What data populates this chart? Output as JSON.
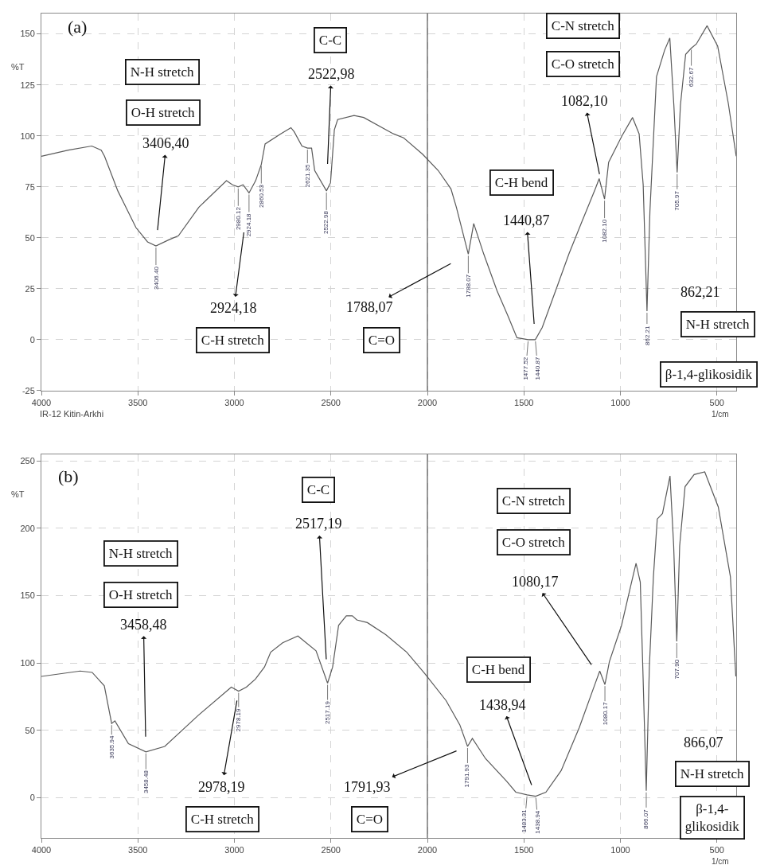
{
  "chart_data": [
    {
      "type": "line",
      "xlabel": "1/cm",
      "ylabel": "%T",
      "xlim": [
        4000,
        400
      ],
      "ylim": [
        -25,
        160
      ],
      "xticks": [
        4000,
        3500,
        3000,
        2500,
        2000,
        1500,
        1000,
        500
      ],
      "yticks": [
        -25,
        0,
        25,
        50,
        75,
        100,
        125,
        150
      ],
      "grid": true,
      "ref_lines": [
        {
          "axis": "x",
          "value": 2000,
          "color": "#555555"
        }
      ],
      "x": [
        4000,
        3860,
        3739,
        3690,
        3673,
        3604,
        3510,
        3450,
        3406.4,
        3340,
        3290,
        3184,
        3041,
        3010,
        2980.12,
        2955,
        2924.18,
        2890,
        2860.53,
        2841,
        2760,
        2707,
        2690,
        2650,
        2621.35,
        2600,
        2584,
        2522.98,
        2502,
        2482,
        2465,
        2380,
        2330,
        2176,
        2123,
        2025,
        1944,
        1878,
        1850,
        1788.07,
        1760,
        1708,
        1639,
        1584,
        1536,
        1477.52,
        1440.87,
        1405,
        1336,
        1267,
        1199,
        1130,
        1110,
        1082.1,
        1061,
        992,
        937,
        903,
        882,
        862.21,
        847,
        813,
        771,
        744,
        723,
        705.97,
        689,
        662,
        632.67,
        607,
        551,
        496,
        441,
        400
      ],
      "series": [
        {
          "color": "#5a5a5a",
          "values": [
            90,
            93,
            95,
            93,
            90,
            73,
            55,
            48,
            46,
            49,
            51,
            65,
            78,
            76,
            75,
            76,
            72,
            78,
            86,
            96,
            101,
            104,
            102,
            95,
            94,
            94,
            83,
            73,
            77,
            103,
            108,
            110,
            109,
            101,
            99,
            91,
            83,
            74,
            65,
            42,
            57,
            42,
            24,
            12,
            1,
            0,
            0,
            6,
            24,
            42,
            58,
            74,
            79,
            69,
            87,
            100,
            109,
            101,
            76,
            14,
            63,
            129,
            142,
            148,
            115,
            82,
            115,
            140,
            143,
            145,
            154,
            144,
            116,
            90
          ]
        }
      ],
      "annotations": [
        "(a)",
        "IR-12 Kitin-Arkhi",
        {
          "text": "3406.40",
          "x": 3406.4,
          "y": 46
        },
        {
          "text": "2980.12",
          "x": 2980.12,
          "y": 75
        },
        {
          "text": "2924.18",
          "x": 2924.18,
          "y": 72
        },
        {
          "text": "2860.53",
          "x": 2860.53,
          "y": 86
        },
        {
          "text": "2621.35",
          "x": 2621.35,
          "y": 94
        },
        {
          "text": "2522.98",
          "x": 2522.98,
          "y": 73
        },
        {
          "text": "1788.07",
          "x": 1788.07,
          "y": 42
        },
        {
          "text": "1477.52",
          "x": 1477.52,
          "y": 0
        },
        {
          "text": "1440.87",
          "x": 1440.87,
          "y": 0
        },
        {
          "text": "1082.10",
          "x": 1082.1,
          "y": 69
        },
        {
          "text": "862.21",
          "x": 862.21,
          "y": 14
        },
        {
          "text": "705.97",
          "x": 705.97,
          "y": 82
        },
        {
          "text": "632.67",
          "x": 632.67,
          "y": 143
        },
        {
          "text": "3406,40",
          "x": 3406.4,
          "y": 46
        },
        "O-H stretch",
        "N-H stretch",
        {
          "text": "2924,18",
          "x": 2924.18,
          "y": 72
        },
        "C-H stretch",
        {
          "text": "2522,98",
          "x": 2522.98,
          "y": 73
        },
        "C-C",
        {
          "text": "1788,07",
          "x": 1788.07,
          "y": 42
        },
        "C=O",
        {
          "text": "1440,87",
          "x": 1440.87,
          "y": 0
        },
        "C-H bend",
        {
          "text": "1082,10",
          "x": 1082.1,
          "y": 69
        },
        "C-O stretch",
        "C-N stretch",
        "862,21",
        "N-H stretch",
        "β-1,4-glikosidik"
      ]
    },
    {
      "type": "line",
      "xlabel": "1/cm",
      "ylabel": "%T",
      "xlim": [
        4000,
        400
      ],
      "ylim": [
        -30,
        255
      ],
      "xticks": [
        4000,
        3500,
        3000,
        2500,
        2000,
        1500,
        1000,
        500
      ],
      "yticks": [
        0,
        50,
        100,
        150,
        200,
        250
      ],
      "grid": true,
      "ref_lines": [
        {
          "axis": "x",
          "value": 2000,
          "color": "#555555"
        }
      ],
      "x": [
        4000,
        3799,
        3737,
        3674,
        3635.94,
        3619,
        3549,
        3458.48,
        3361,
        3188,
        3016,
        2978.19,
        2938,
        2891,
        2844,
        2812,
        2750,
        2671,
        2577,
        2517.19,
        2491,
        2460,
        2420,
        2389,
        2366,
        2311,
        2216,
        2107,
        2013,
        1903,
        1832,
        1791.93,
        1767,
        1699,
        1589,
        1542,
        1483.31,
        1438.94,
        1386,
        1307,
        1213,
        1135,
        1107,
        1080.17,
        1057,
        994,
        947,
        919,
        897,
        884,
        866.07,
        850,
        829,
        809,
        782,
        743,
        724,
        707.9,
        693,
        665,
        618,
        563,
        493,
        430,
        402
      ],
      "series": [
        {
          "color": "#5a5a5a",
          "values": [
            90,
            94,
            93,
            83,
            55,
            57,
            40,
            34,
            38,
            61,
            82,
            79,
            82,
            88,
            97,
            108,
            115,
            120,
            109,
            85,
            97,
            128,
            135,
            135,
            132,
            130,
            121,
            108,
            92,
            72,
            54,
            38,
            44,
            29,
            12,
            4,
            2,
            1,
            4,
            20,
            52,
            83,
            94,
            84,
            101,
            128,
            157,
            174,
            160,
            97,
            5,
            97,
            164,
            207,
            211,
            239,
            187,
            116,
            187,
            231,
            240,
            242,
            216,
            164,
            90
          ]
        }
      ],
      "annotations": [
        "(b)",
        {
          "text": "3635.94",
          "x": 3635.94,
          "y": 55
        },
        {
          "text": "3458.48",
          "x": 3458.48,
          "y": 34
        },
        {
          "text": "2978.19",
          "x": 2978.19,
          "y": 79
        },
        {
          "text": "2517.19",
          "x": 2517.19,
          "y": 85
        },
        {
          "text": "1791.93",
          "x": 1791.93,
          "y": 38
        },
        {
          "text": "1483.31",
          "x": 1483.31,
          "y": 2
        },
        {
          "text": "1438.94",
          "x": 1438.94,
          "y": 1
        },
        {
          "text": "1080.17",
          "x": 1080.17,
          "y": 84
        },
        {
          "text": "866.07",
          "x": 866.07,
          "y": 5
        },
        {
          "text": "707.90",
          "x": 707.9,
          "y": 116
        },
        {
          "text": "3458,48",
          "x": 3458.48,
          "y": 34
        },
        "O-H stretch",
        "N-H stretch",
        {
          "text": "2978,19",
          "x": 2978.19,
          "y": 79
        },
        "C-H stretch",
        {
          "text": "2517,19",
          "x": 2517.19,
          "y": 85
        },
        "C-C",
        {
          "text": "1791,93",
          "x": 1791.93,
          "y": 38
        },
        "C=O",
        {
          "text": "1438,94",
          "x": 1438.94,
          "y": 1
        },
        "C-H bend",
        {
          "text": "1080,17",
          "x": 1080.17,
          "y": 84
        },
        "C-O stretch",
        "C-N stretch",
        "866,07",
        "N-H stretch",
        "β-1,4-\nglikosidik"
      ]
    }
  ]
}
